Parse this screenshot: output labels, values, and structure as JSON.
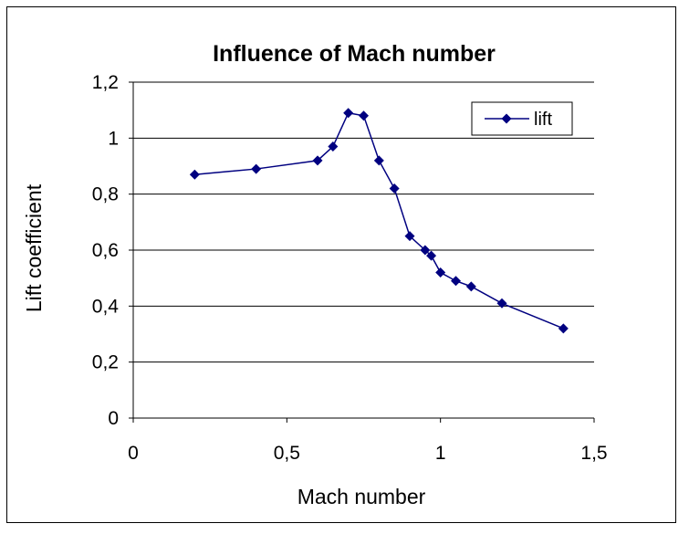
{
  "chart_data": {
    "type": "line",
    "title": "Influence of Mach number",
    "xlabel": "Mach number",
    "ylabel": "Lift coefficient",
    "xlim": [
      0,
      1.5
    ],
    "ylim": [
      0,
      1.2
    ],
    "x_ticks": [
      "0",
      "0,5",
      "1",
      "1,5"
    ],
    "x_tick_values": [
      0,
      0.5,
      1,
      1.5
    ],
    "y_ticks": [
      "0",
      "0,2",
      "0,4",
      "0,6",
      "0,8",
      "1",
      "1,2"
    ],
    "y_tick_values": [
      0,
      0.2,
      0.4,
      0.6,
      0.8,
      1.0,
      1.2
    ],
    "grid": "horizontal",
    "legend_position": "top-right",
    "series": [
      {
        "name": "lift",
        "color": "#000080",
        "marker": "diamond",
        "x": [
          0.2,
          0.4,
          0.6,
          0.65,
          0.7,
          0.75,
          0.8,
          0.85,
          0.9,
          0.95,
          0.97,
          1.0,
          1.05,
          1.1,
          1.2,
          1.4
        ],
        "y": [
          0.87,
          0.89,
          0.92,
          0.97,
          1.09,
          1.08,
          0.92,
          0.82,
          0.65,
          0.6,
          0.58,
          0.52,
          0.49,
          0.47,
          0.41,
          0.32
        ]
      }
    ]
  }
}
